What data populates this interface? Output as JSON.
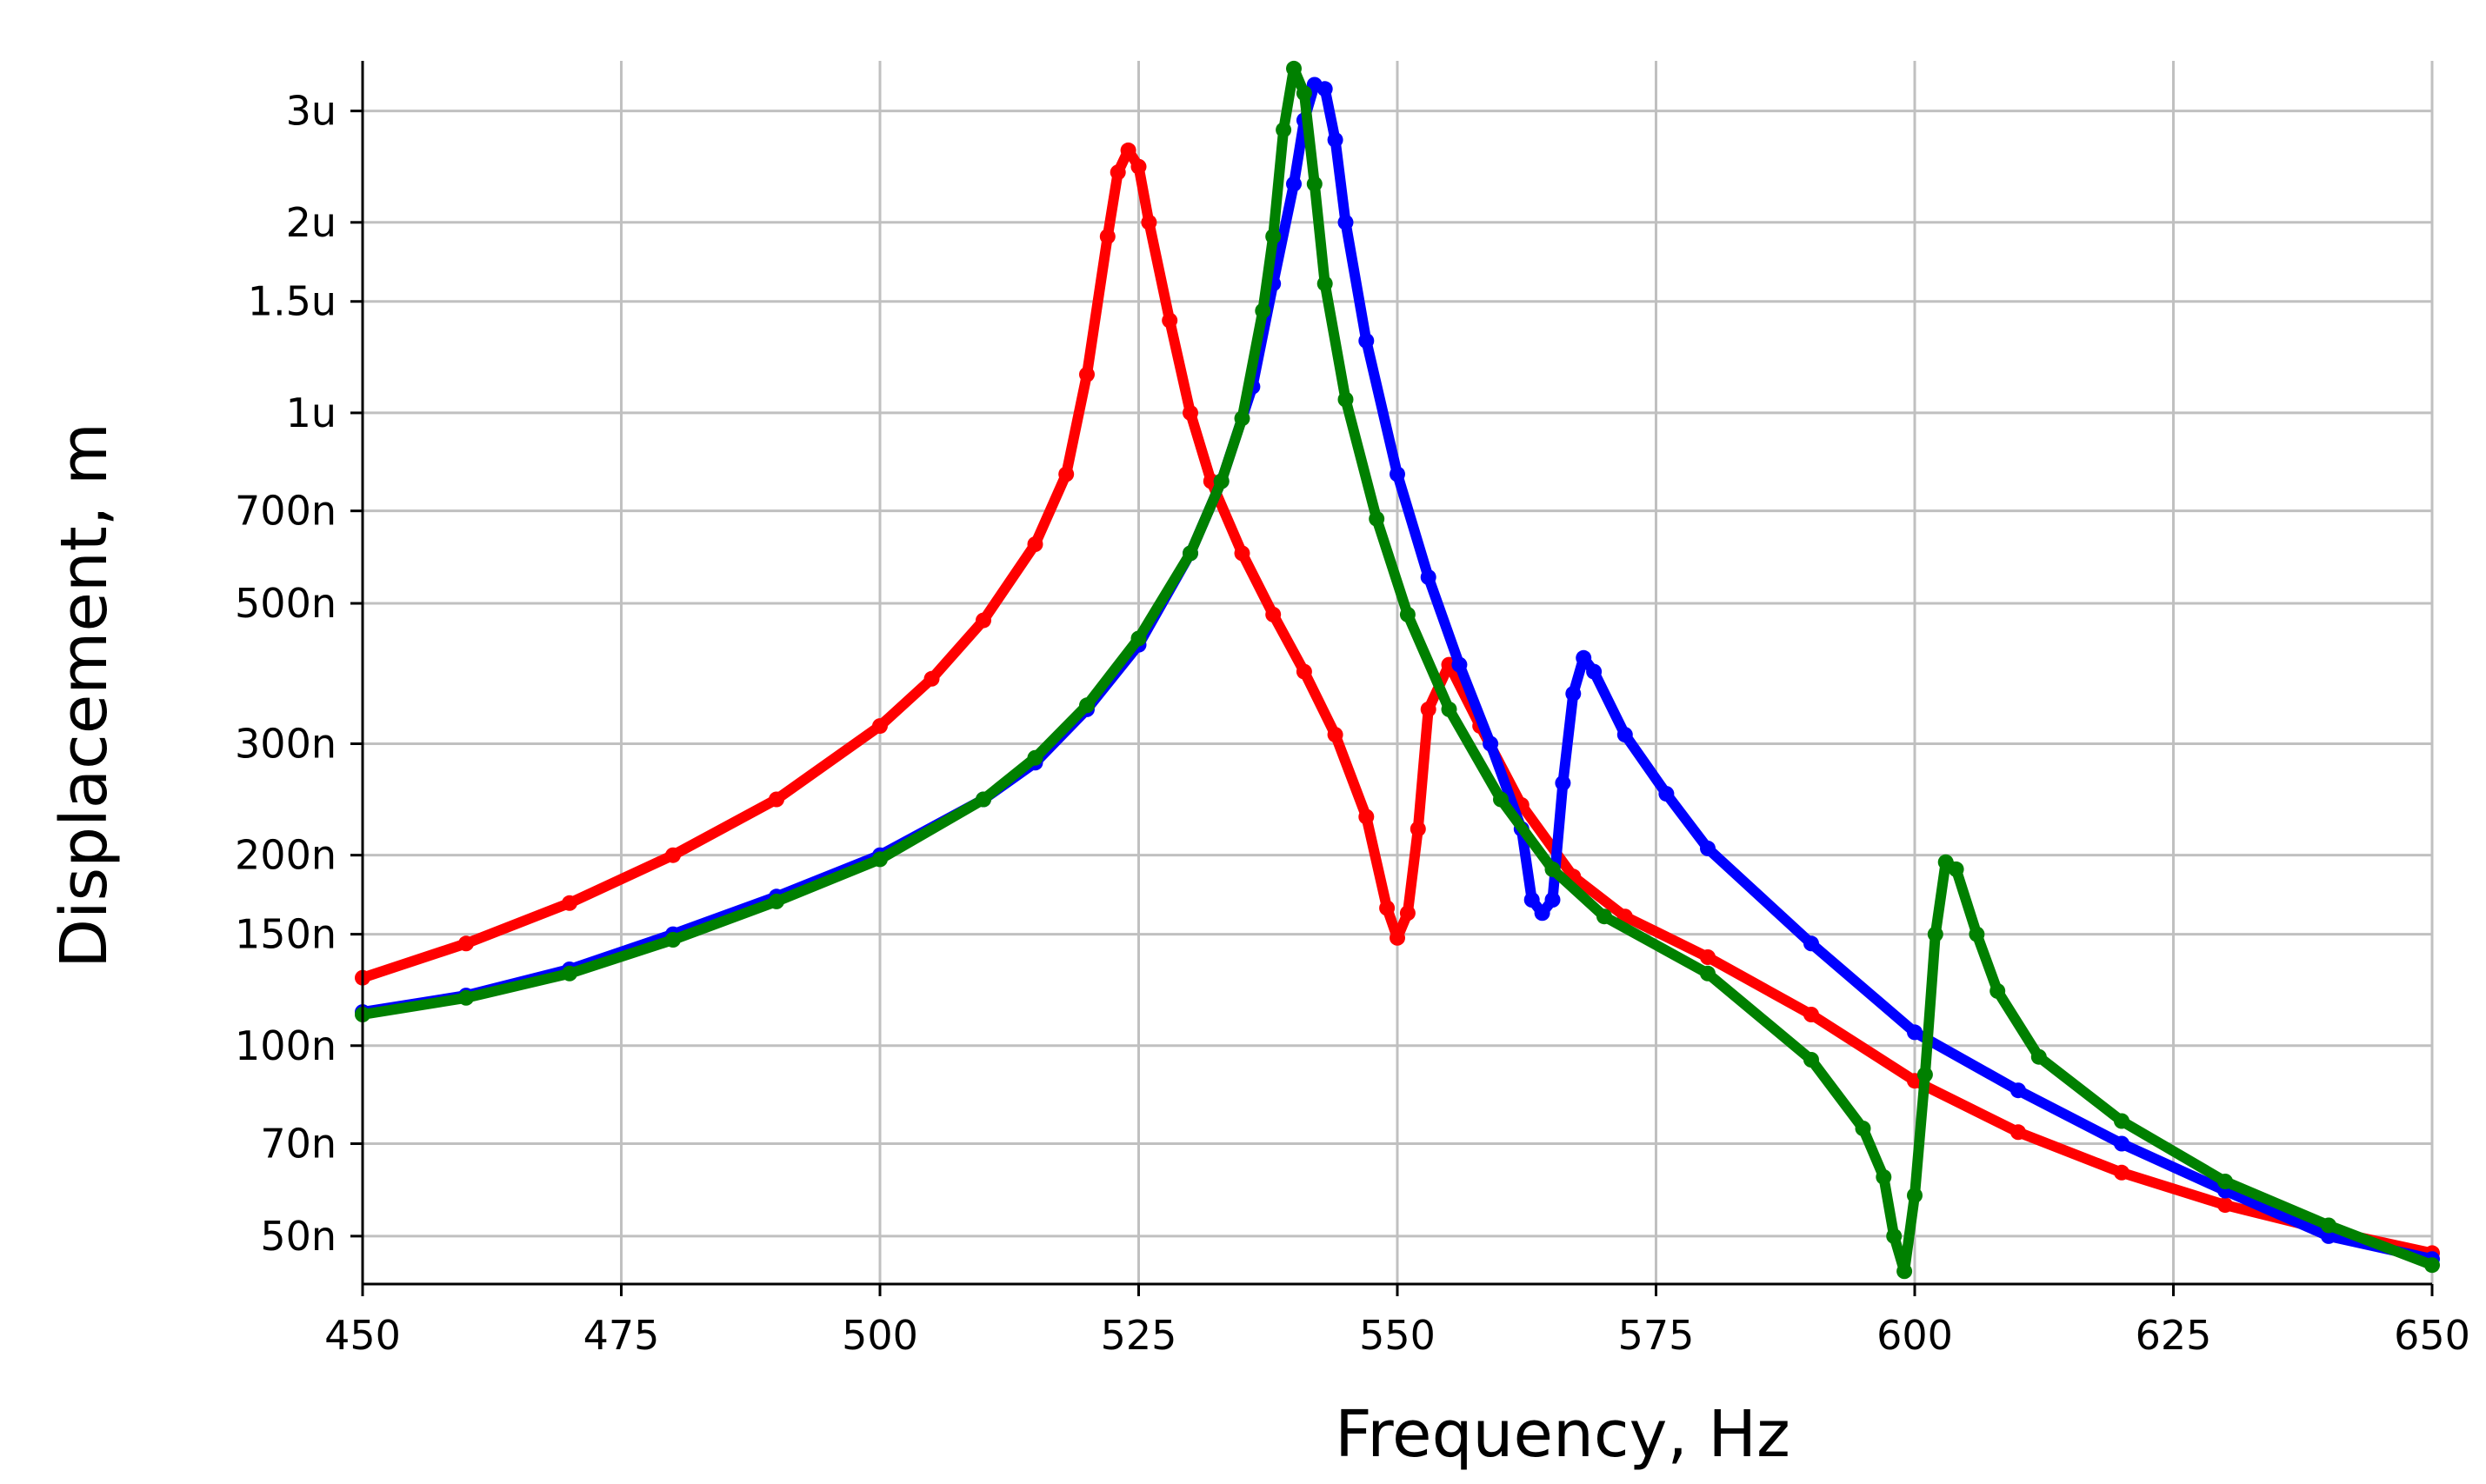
{
  "chart_data": {
    "type": "line",
    "title": "",
    "xlabel": "Frequency, Hz",
    "ylabel": "Displacement, m",
    "x_scale": "linear",
    "y_scale": "log",
    "xlim": [
      450,
      650
    ],
    "ylim": [
      4.2e-08,
      3.6e-06
    ],
    "grid": true,
    "legend": "none",
    "x_ticks": [
      {
        "value": 450,
        "label": "450"
      },
      {
        "value": 475,
        "label": "475"
      },
      {
        "value": 500,
        "label": "500"
      },
      {
        "value": 525,
        "label": "525"
      },
      {
        "value": 550,
        "label": "550"
      },
      {
        "value": 575,
        "label": "575"
      },
      {
        "value": 600,
        "label": "600"
      },
      {
        "value": 625,
        "label": "625"
      },
      {
        "value": 650,
        "label": "650"
      }
    ],
    "y_ticks": [
      {
        "value": 3e-06,
        "label": "3u"
      },
      {
        "value": 2e-06,
        "label": "2u"
      },
      {
        "value": 1.5e-06,
        "label": "1.5u"
      },
      {
        "value": 1e-06,
        "label": "1u"
      },
      {
        "value": 7e-07,
        "label": "700n"
      },
      {
        "value": 5e-07,
        "label": "500n"
      },
      {
        "value": 3e-07,
        "label": "300n"
      },
      {
        "value": 2e-07,
        "label": "200n"
      },
      {
        "value": 1.5e-07,
        "label": "150n"
      },
      {
        "value": 1e-07,
        "label": "100n"
      },
      {
        "value": 7e-08,
        "label": "70n"
      },
      {
        "value": 5e-08,
        "label": "50n"
      }
    ],
    "series": [
      {
        "name": "red",
        "color": "#ff0000",
        "points": [
          [
            450,
            1.28e-07
          ],
          [
            460,
            1.45e-07
          ],
          [
            470,
            1.68e-07
          ],
          [
            480,
            2e-07
          ],
          [
            490,
            2.45e-07
          ],
          [
            500,
            3.2e-07
          ],
          [
            505,
            3.8e-07
          ],
          [
            510,
            4.7e-07
          ],
          [
            515,
            6.2e-07
          ],
          [
            518,
            8e-07
          ],
          [
            520,
            1.15e-06
          ],
          [
            522,
            1.9e-06
          ],
          [
            523,
            2.4e-06
          ],
          [
            524,
            2.6e-06
          ],
          [
            525,
            2.45e-06
          ],
          [
            526,
            2e-06
          ],
          [
            528,
            1.4e-06
          ],
          [
            530,
            1e-06
          ],
          [
            532,
            7.8e-07
          ],
          [
            535,
            6e-07
          ],
          [
            538,
            4.8e-07
          ],
          [
            541,
            3.9e-07
          ],
          [
            544,
            3.1e-07
          ],
          [
            547,
            2.3e-07
          ],
          [
            549,
            1.65e-07
          ],
          [
            550,
            1.48e-07
          ],
          [
            551,
            1.62e-07
          ],
          [
            552,
            2.2e-07
          ],
          [
            553,
            3.4e-07
          ],
          [
            555,
            4e-07
          ],
          [
            558,
            3.2e-07
          ],
          [
            562,
            2.4e-07
          ],
          [
            567,
            1.85e-07
          ],
          [
            572,
            1.6e-07
          ],
          [
            580,
            1.38e-07
          ],
          [
            590,
            1.12e-07
          ],
          [
            600,
            8.8e-08
          ],
          [
            610,
            7.3e-08
          ],
          [
            620,
            6.3e-08
          ],
          [
            630,
            5.6e-08
          ],
          [
            640,
            5.1e-08
          ],
          [
            650,
            4.7e-08
          ]
        ]
      },
      {
        "name": "blue",
        "color": "#0000ff",
        "points": [
          [
            450,
            1.13e-07
          ],
          [
            460,
            1.2e-07
          ],
          [
            470,
            1.32e-07
          ],
          [
            480,
            1.5e-07
          ],
          [
            490,
            1.72e-07
          ],
          [
            500,
            2e-07
          ],
          [
            510,
            2.45e-07
          ],
          [
            515,
            2.8e-07
          ],
          [
            520,
            3.4e-07
          ],
          [
            525,
            4.3e-07
          ],
          [
            530,
            6e-07
          ],
          [
            533,
            7.8e-07
          ],
          [
            536,
            1.1e-06
          ],
          [
            538,
            1.6e-06
          ],
          [
            540,
            2.3e-06
          ],
          [
            541,
            2.9e-06
          ],
          [
            542,
            3.3e-06
          ],
          [
            543,
            3.25e-06
          ],
          [
            544,
            2.7e-06
          ],
          [
            545,
            2e-06
          ],
          [
            547,
            1.3e-06
          ],
          [
            550,
            8e-07
          ],
          [
            553,
            5.5e-07
          ],
          [
            556,
            4e-07
          ],
          [
            559,
            3e-07
          ],
          [
            562,
            2.2e-07
          ],
          [
            563,
            1.7e-07
          ],
          [
            564,
            1.62e-07
          ],
          [
            565,
            1.7e-07
          ],
          [
            566,
            2.6e-07
          ],
          [
            567,
            3.6e-07
          ],
          [
            568,
            4.1e-07
          ],
          [
            569,
            3.9e-07
          ],
          [
            572,
            3.1e-07
          ],
          [
            576,
            2.5e-07
          ],
          [
            580,
            2.05e-07
          ],
          [
            590,
            1.45e-07
          ],
          [
            600,
            1.05e-07
          ],
          [
            610,
            8.5e-08
          ],
          [
            620,
            7e-08
          ],
          [
            630,
            5.9e-08
          ],
          [
            640,
            5e-08
          ],
          [
            650,
            4.6e-08
          ]
        ]
      },
      {
        "name": "green",
        "color": "#008000",
        "points": [
          [
            450,
            1.12e-07
          ],
          [
            460,
            1.19e-07
          ],
          [
            470,
            1.3e-07
          ],
          [
            480,
            1.47e-07
          ],
          [
            490,
            1.69e-07
          ],
          [
            500,
            1.97e-07
          ],
          [
            510,
            2.45e-07
          ],
          [
            515,
            2.85e-07
          ],
          [
            520,
            3.45e-07
          ],
          [
            525,
            4.4e-07
          ],
          [
            530,
            6e-07
          ],
          [
            533,
            7.8e-07
          ],
          [
            535,
            9.8e-07
          ],
          [
            537,
            1.45e-06
          ],
          [
            538,
            1.9e-06
          ],
          [
            539,
            2.8e-06
          ],
          [
            540,
            3.5e-06
          ],
          [
            541,
            3.2e-06
          ],
          [
            542,
            2.3e-06
          ],
          [
            543,
            1.6e-06
          ],
          [
            545,
            1.05e-06
          ],
          [
            548,
            6.8e-07
          ],
          [
            551,
            4.8e-07
          ],
          [
            555,
            3.4e-07
          ],
          [
            560,
            2.45e-07
          ],
          [
            565,
            1.9e-07
          ],
          [
            570,
            1.6e-07
          ],
          [
            580,
            1.3e-07
          ],
          [
            590,
            9.5e-08
          ],
          [
            595,
            7.4e-08
          ],
          [
            597,
            6.2e-08
          ],
          [
            598,
            5e-08
          ],
          [
            599,
            4.4e-08
          ],
          [
            600,
            5.8e-08
          ],
          [
            601,
            9e-08
          ],
          [
            602,
            1.5e-07
          ],
          [
            603,
            1.95e-07
          ],
          [
            604,
            1.9e-07
          ],
          [
            606,
            1.5e-07
          ],
          [
            608,
            1.22e-07
          ],
          [
            612,
            9.6e-08
          ],
          [
            620,
            7.6e-08
          ],
          [
            630,
            6.1e-08
          ],
          [
            640,
            5.2e-08
          ],
          [
            650,
            4.5e-08
          ]
        ]
      }
    ]
  }
}
